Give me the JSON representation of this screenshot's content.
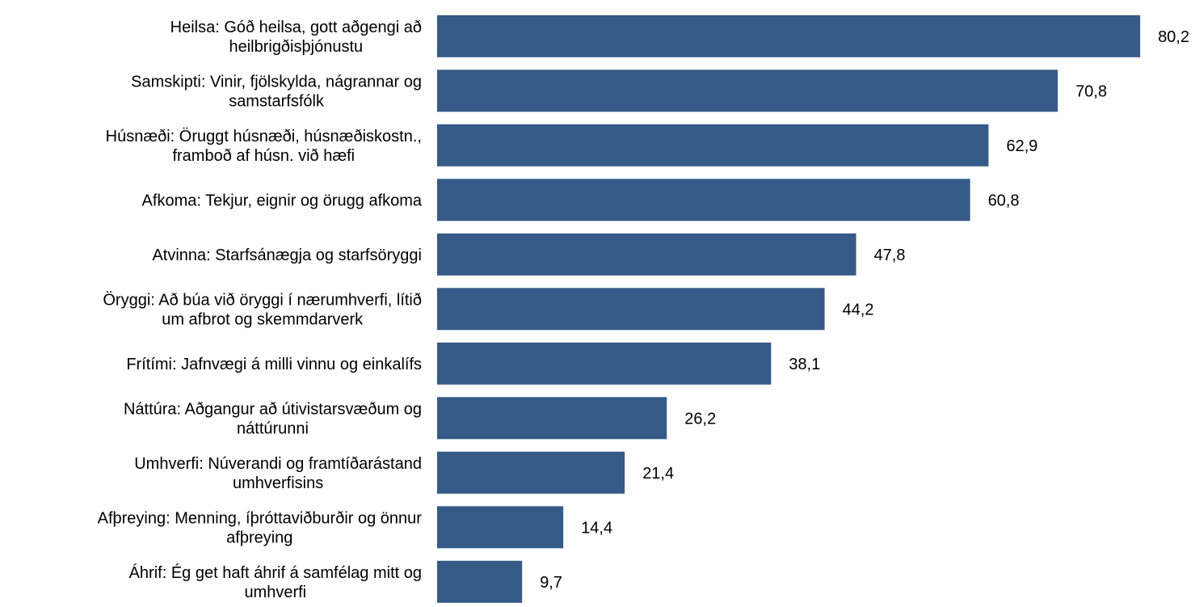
{
  "chart_data": {
    "type": "bar",
    "orientation": "horizontal",
    "categories": [
      [
        "Heilsa: Góð heilsa, gott aðgengi að",
        "heilbrigðisþjónustu"
      ],
      [
        "Samskipti: Vinir, fjölskylda, nágrannar og",
        "samstarfsfólk"
      ],
      [
        "Húsnæði: Öruggt húsnæði, húsnæðiskostn.,",
        "framboð af húsn. við hæfi"
      ],
      [
        "Afkoma: Tekjur, eignir og örugg afkoma"
      ],
      [
        "Atvinna: Starfsánægja og starfsöryggi"
      ],
      [
        "Öryggi: Að búa við öryggi í nærumhverfi, lítið",
        "um afbrot og skemmdarverk"
      ],
      [
        "Frítími: Jafnvægi á milli vinnu og einkalífs"
      ],
      [
        "Náttúra: Aðgangur að útivistarsvæðum og",
        "náttúrunni"
      ],
      [
        "Umhverfi: Núverandi og framtíðarástand",
        "umhverfisins"
      ],
      [
        "Afþreying: Menning, íþróttaviðburðir og önnur",
        "afþreying"
      ],
      [
        "Áhrif: Ég get haft áhrif á samfélag mitt og",
        "umhverfi"
      ]
    ],
    "values": [
      80.2,
      70.8,
      62.9,
      60.8,
      47.8,
      44.2,
      38.1,
      26.2,
      21.4,
      14.4,
      9.7
    ],
    "value_labels": [
      "80,2",
      "70,8",
      "62,9",
      "60,8",
      "47,8",
      "44,2",
      "38,1",
      "26,2",
      "21,4",
      "14,4",
      "9,7"
    ],
    "bar_color": "#355a87",
    "title": "",
    "xlabel": "",
    "ylabel": "",
    "xlim": [
      0,
      100
    ],
    "grid": false,
    "legend": "none"
  }
}
